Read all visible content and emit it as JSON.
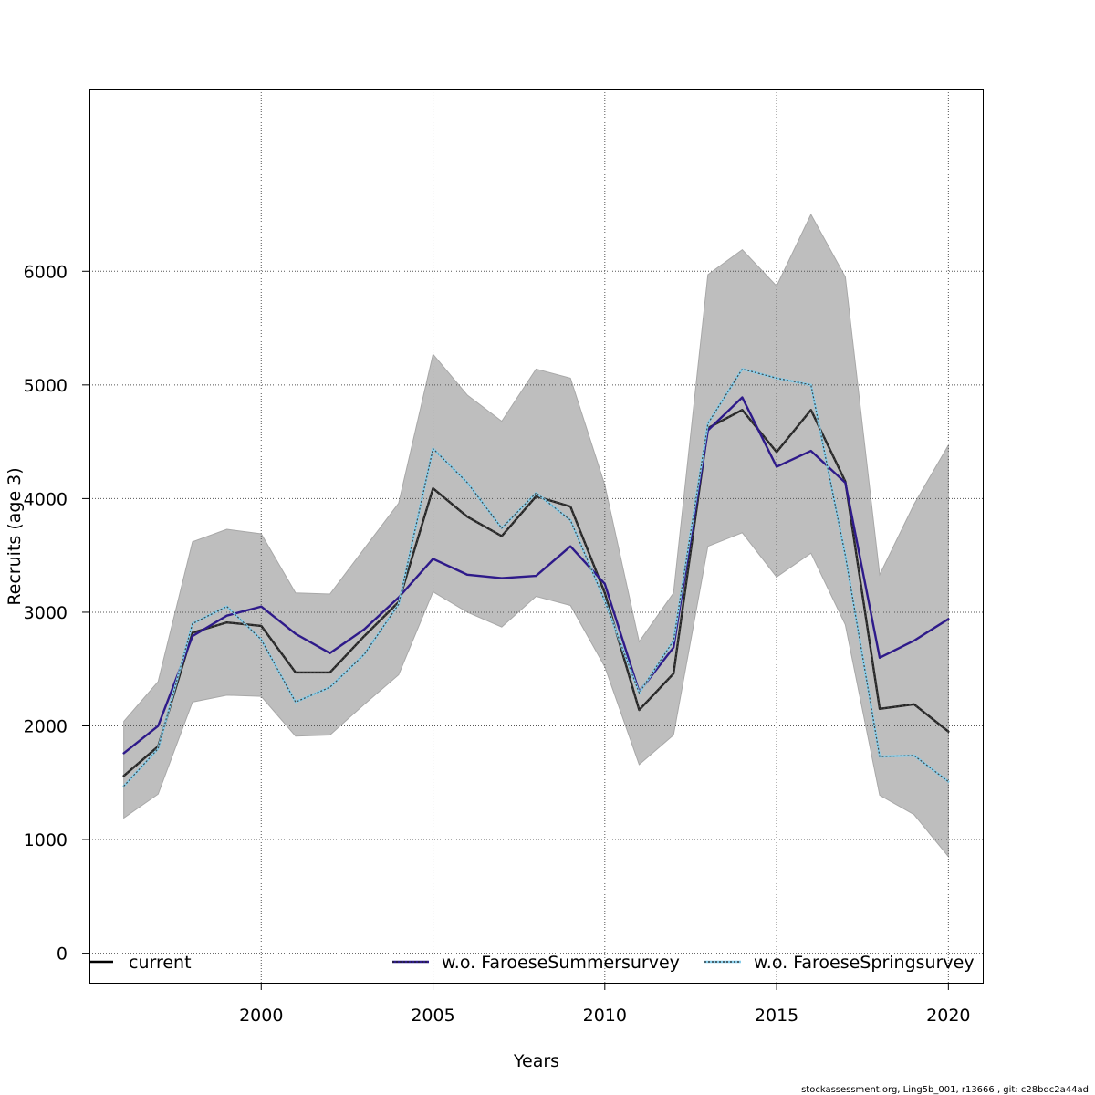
{
  "chart_data": {
    "type": "line",
    "title": "",
    "xlabel": "Years",
    "ylabel": "Recruits (age 3)",
    "xlim": [
      1995,
      2021
    ],
    "ylim": [
      -260,
      7600
    ],
    "x_ticks": [
      2000,
      2005,
      2010,
      2015,
      2020
    ],
    "y_ticks": [
      0,
      1000,
      2000,
      3000,
      4000,
      5000,
      6000
    ],
    "grid": true,
    "x": [
      1996,
      1997,
      1998,
      1999,
      2000,
      2001,
      2002,
      2003,
      2004,
      2005,
      2006,
      2007,
      2008,
      2009,
      2010,
      2011,
      2012,
      2013,
      2014,
      2015,
      2016,
      2017,
      2018,
      2019,
      2020
    ],
    "band": {
      "color": "#bebebe",
      "lower": [
        1190,
        1400,
        2210,
        2270,
        2260,
        1910,
        1920,
        2190,
        2450,
        3180,
        3000,
        2870,
        3140,
        3060,
        2520,
        1660,
        1920,
        3580,
        3700,
        3310,
        3520,
        2890,
        1390,
        1220,
        850
      ],
      "upper": [
        2040,
        2390,
        3620,
        3730,
        3690,
        3170,
        3160,
        3560,
        3960,
        5270,
        4910,
        4680,
        5140,
        5060,
        4120,
        2740,
        3170,
        5970,
        6190,
        5870,
        6500,
        5950,
        3330,
        3950,
        4470
      ]
    },
    "series": [
      {
        "name": "current",
        "color": "#222222",
        "style": "solid",
        "values": [
          1560,
          1820,
          2820,
          2910,
          2880,
          2470,
          2470,
          2790,
          3090,
          4090,
          3840,
          3670,
          4020,
          3930,
          3170,
          2140,
          2460,
          4620,
          4780,
          4410,
          4780,
          4150,
          2150,
          2190,
          1950
        ]
      },
      {
        "name": "w.o. FaroeseSummersurvey",
        "color": "#2e1a8a",
        "style": "solid",
        "values": [
          1760,
          2000,
          2790,
          2970,
          3050,
          2810,
          2640,
          2850,
          3130,
          3470,
          3330,
          3300,
          3320,
          3580,
          3250,
          2300,
          2690,
          4600,
          4890,
          4280,
          4420,
          4140,
          2600,
          2750,
          2940
        ]
      },
      {
        "name": "w.o. FaroeseSpringsurvey",
        "color": "#87ceeb",
        "style": "dotted",
        "values": [
          1470,
          1800,
          2900,
          3050,
          2760,
          2210,
          2340,
          2630,
          3070,
          4440,
          4140,
          3740,
          4050,
          3810,
          3100,
          2290,
          2750,
          4660,
          5140,
          5060,
          5000,
          3500,
          1730,
          1740,
          1510
        ]
      }
    ],
    "legend": {
      "placement": "bottom",
      "entries": [
        "current",
        "w.o. FaroeseSummersurvey",
        "w.o. FaroeseSpringsurvey"
      ]
    }
  },
  "footnote": "stockassessment.org, Ling5b_001, r13666 , git: c28bdc2a44ad"
}
